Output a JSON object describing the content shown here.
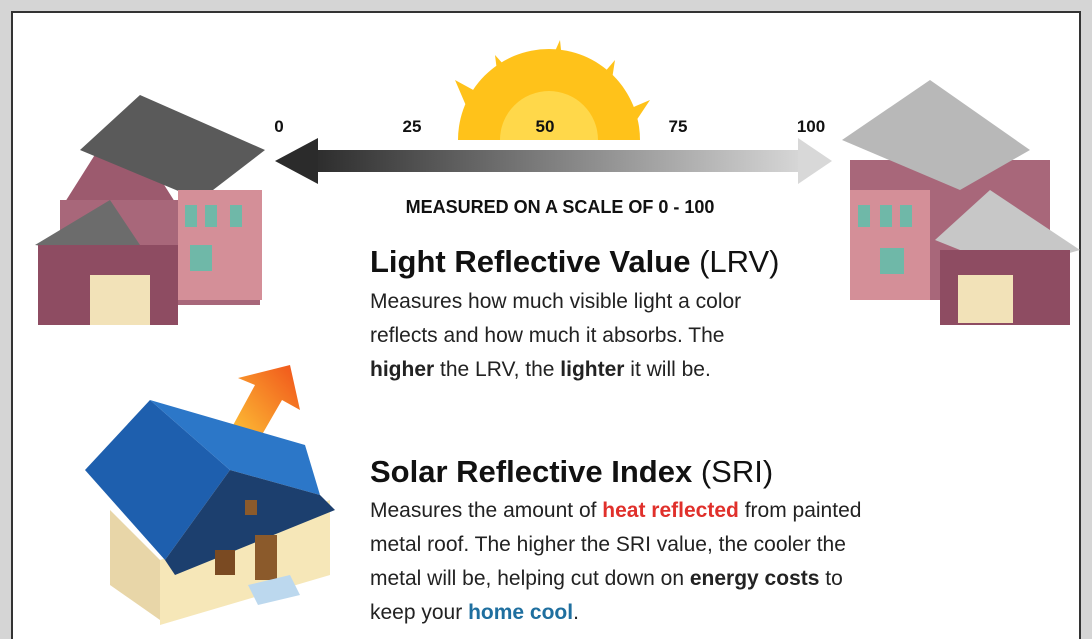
{
  "scale": {
    "ticks": [
      0,
      25,
      50,
      75,
      100
    ],
    "caption": "MEASURED ON A SCALE OF 0 - 100"
  },
  "lrv": {
    "title": "Light Reflective Value",
    "abbr": "(LRV)",
    "lines": [
      [
        "Measures how much visible light a color"
      ],
      [
        "reflects and how much it absorbs. The"
      ],
      [
        "higher",
        " the LRV, the ",
        "lighter",
        " it will be."
      ]
    ]
  },
  "sri": {
    "title": "Solar Reflective Index",
    "abbr": "(SRI)",
    "lines": [
      [
        "Measures the amount of ",
        "heat reflected",
        " from painted"
      ],
      [
        "metal roof. The higher the SRI value, the cooler the"
      ],
      [
        "metal will be, helping cut down on ",
        "energy costs",
        " to"
      ],
      [
        "keep your ",
        "home cool",
        "."
      ]
    ]
  }
}
